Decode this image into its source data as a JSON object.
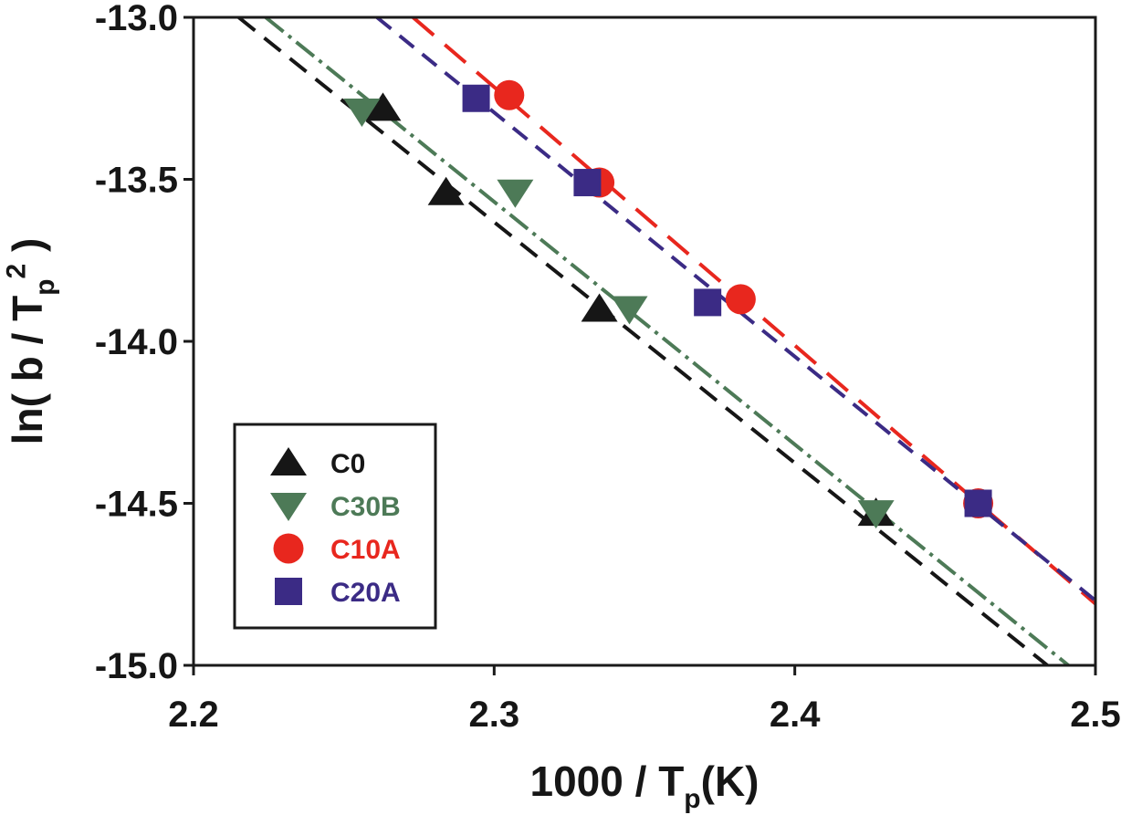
{
  "figure": {
    "background": "#ffffff",
    "axis_color": "#1a1a1a"
  },
  "chart_data": {
    "type": "scatter",
    "title": "",
    "xlabel_text": "1000 / Tp(K)",
    "xlabel_parts": [
      {
        "t": "1000 / T"
      },
      {
        "t": "p",
        "style": "sub"
      },
      {
        "t": "(K)"
      }
    ],
    "ylabel_text": "ln( b / Tp2 )",
    "ylabel_parts": [
      {
        "t": "ln( b / T"
      },
      {
        "t": "p",
        "style": "sub"
      },
      {
        "t": "2",
        "style": "sup"
      },
      {
        "t": " )"
      }
    ],
    "xlim": [
      2.2,
      2.5
    ],
    "ylim": [
      -15.0,
      -13.0
    ],
    "grid": false,
    "x_ticks": [
      {
        "v": 2.2,
        "label": "2.2"
      },
      {
        "v": 2.3,
        "label": "2.3"
      },
      {
        "v": 2.4,
        "label": "2.4"
      },
      {
        "v": 2.5,
        "label": "2.5"
      }
    ],
    "y_ticks": [
      {
        "v": -13.0,
        "label": "-13.0"
      },
      {
        "v": -13.5,
        "label": "-13.5"
      },
      {
        "v": -14.0,
        "label": "-14.0"
      },
      {
        "v": -14.5,
        "label": "-14.5"
      },
      {
        "v": -15.0,
        "label": "-15.0"
      }
    ],
    "legend_position": "lower-left",
    "series": [
      {
        "name": "C0",
        "color": "#161616",
        "marker": "triangle-up",
        "line_style": "long-dash",
        "dash": [
          23,
          13
        ],
        "points": [
          [
            2.263,
            -13.28
          ],
          [
            2.284,
            -13.54
          ],
          [
            2.335,
            -13.9
          ],
          [
            2.427,
            -14.53
          ]
        ],
        "fit_line": {
          "x1": 2.215,
          "y1": -13.0,
          "x2": 2.484,
          "y2": -15.0
        }
      },
      {
        "name": "C30B",
        "color": "#4d7a57",
        "marker": "triangle-down",
        "line_style": "dash-dot",
        "dash": [
          25,
          7,
          4,
          7
        ],
        "points": [
          [
            2.256,
            -13.29
          ],
          [
            2.307,
            -13.54
          ],
          [
            2.345,
            -13.9
          ],
          [
            2.427,
            -14.53
          ]
        ],
        "fit_line": {
          "x1": 2.224,
          "y1": -13.0,
          "x2": 2.491,
          "y2": -15.0
        }
      },
      {
        "name": "C10A",
        "color": "#e8271e",
        "marker": "circle",
        "line_style": "long-dash",
        "dash": [
          30,
          16
        ],
        "points": [
          [
            2.305,
            -13.24
          ],
          [
            2.335,
            -13.51
          ],
          [
            2.382,
            -13.87
          ],
          [
            2.461,
            -14.5
          ]
        ],
        "fit_line": {
          "x1": 2.273,
          "y1": -13.0,
          "x2": 2.5,
          "y2": -14.81
        }
      },
      {
        "name": "C20A",
        "color": "#3b2b85",
        "marker": "square",
        "line_style": "dash",
        "dash": [
          20,
          12
        ],
        "points": [
          [
            2.294,
            -13.25
          ],
          [
            2.331,
            -13.51
          ],
          [
            2.371,
            -13.88
          ],
          [
            2.461,
            -14.5
          ]
        ],
        "fit_line": {
          "x1": 2.261,
          "y1": -13.0,
          "x2": 2.5,
          "y2": -14.8
        }
      }
    ],
    "legend": [
      "C0",
      "C30B",
      "C10A",
      "C20A"
    ]
  }
}
